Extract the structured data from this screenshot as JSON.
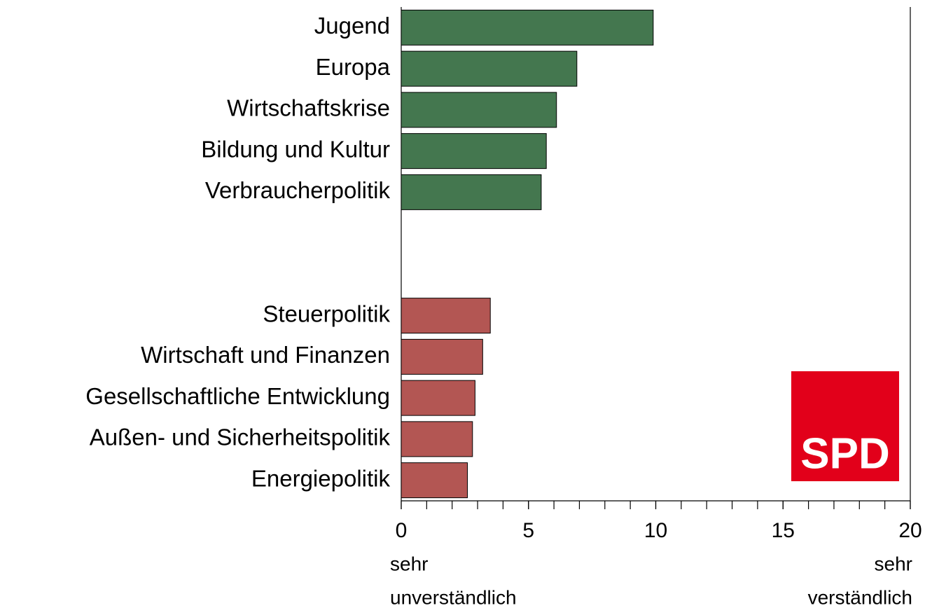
{
  "chart_data": {
    "type": "barh",
    "categories": [
      "Jugend",
      "Europa",
      "Wirtschaftskrise",
      "Bildung und Kultur",
      "Verbraucherpolitik",
      null,
      null,
      "Steuerpolitik",
      "Wirtschaft und Finanzen",
      "Gesellschaftliche Entwicklung",
      "Außen- und Sicherheitspolitik",
      "Energiepolitik"
    ],
    "values": [
      9.9,
      6.9,
      6.1,
      5.7,
      5.5,
      null,
      null,
      3.5,
      3.2,
      2.9,
      2.8,
      2.6
    ],
    "colors": [
      "#44774f",
      "#44774f",
      "#44774f",
      "#44774f",
      "#44774f",
      null,
      null,
      "#b35653",
      "#b35653",
      "#b35653",
      "#b35653",
      "#b35653"
    ],
    "xlim": [
      0,
      20
    ],
    "xticks": [
      0,
      5,
      10,
      15,
      20
    ],
    "xminor_ticks": [
      0,
      1,
      2,
      3,
      4,
      5,
      6,
      7,
      8,
      9,
      10,
      11,
      12,
      13,
      14,
      15,
      16,
      17,
      18,
      19,
      20
    ],
    "x_label_left": [
      "sehr",
      "unverständlich"
    ],
    "x_label_right": [
      "sehr",
      "verständlich"
    ],
    "logo": "SPD"
  }
}
